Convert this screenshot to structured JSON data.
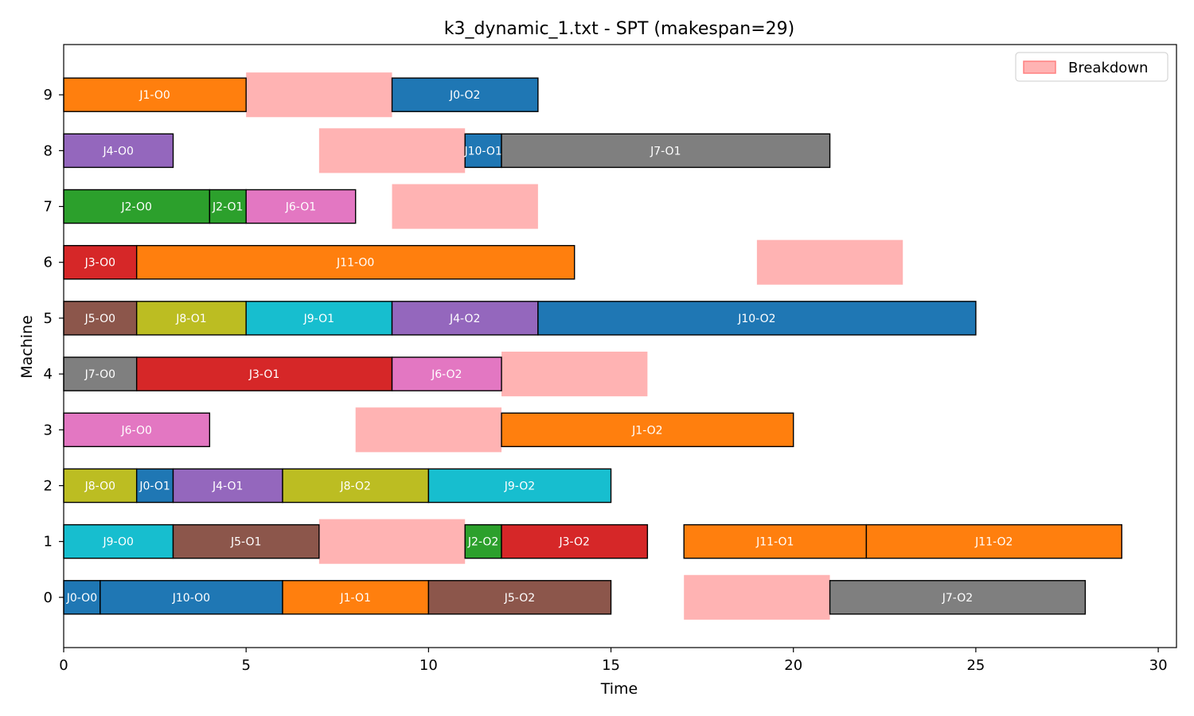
{
  "chart_data": {
    "type": "gantt",
    "title": "k3_dynamic_1.txt - SPT (makespan=29)",
    "xlabel": "Time",
    "ylabel": "Machine",
    "xlim": [
      0,
      30.5
    ],
    "ylim": [
      -0.9,
      9.9
    ],
    "xticks": [
      "0",
      "5",
      "10",
      "15",
      "20",
      "25",
      "30"
    ],
    "yticks": [
      "0",
      "1",
      "2",
      "3",
      "4",
      "5",
      "6",
      "7",
      "8",
      "9"
    ],
    "grid": false,
    "legend": {
      "position": "top-right",
      "entries": [
        {
          "label": "Breakdown",
          "color": "#ffb3b3"
        }
      ]
    },
    "job_colors": {
      "J0": "#1f77b4",
      "J1": "#ff7f0e",
      "J2": "#2ca02c",
      "J3": "#d62728",
      "J4": "#9467bd",
      "J5": "#8c564b",
      "J6": "#e377c2",
      "J7": "#7f7f7f",
      "J8": "#bcbd22",
      "J9": "#17becf",
      "J10": "#1f77b4",
      "J11": "#ff7f0e"
    },
    "breakdown_color": "#ffb3b3",
    "operations": [
      {
        "machine": 9,
        "start": 0,
        "end": 5,
        "job": "J1",
        "label": "J1-O0"
      },
      {
        "machine": 9,
        "start": 9,
        "end": 13,
        "job": "J0",
        "label": "J0-O2"
      },
      {
        "machine": 8,
        "start": 0,
        "end": 3,
        "job": "J4",
        "label": "J4-O0"
      },
      {
        "machine": 8,
        "start": 11,
        "end": 12,
        "job": "J10",
        "label": "J10-O1"
      },
      {
        "machine": 8,
        "start": 12,
        "end": 21,
        "job": "J7",
        "label": "J7-O1"
      },
      {
        "machine": 7,
        "start": 0,
        "end": 4,
        "job": "J2",
        "label": "J2-O0"
      },
      {
        "machine": 7,
        "start": 4,
        "end": 5,
        "job": "J2",
        "label": "J2-O1"
      },
      {
        "machine": 7,
        "start": 5,
        "end": 8,
        "job": "J6",
        "label": "J6-O1"
      },
      {
        "machine": 6,
        "start": 0,
        "end": 2,
        "job": "J3",
        "label": "J3-O0"
      },
      {
        "machine": 6,
        "start": 2,
        "end": 14,
        "job": "J11",
        "label": "J11-O0"
      },
      {
        "machine": 5,
        "start": 0,
        "end": 2,
        "job": "J5",
        "label": "J5-O0"
      },
      {
        "machine": 5,
        "start": 2,
        "end": 5,
        "job": "J8",
        "label": "J8-O1"
      },
      {
        "machine": 5,
        "start": 5,
        "end": 9,
        "job": "J9",
        "label": "J9-O1"
      },
      {
        "machine": 5,
        "start": 9,
        "end": 13,
        "job": "J4",
        "label": "J4-O2"
      },
      {
        "machine": 5,
        "start": 13,
        "end": 25,
        "job": "J10",
        "label": "J10-O2"
      },
      {
        "machine": 4,
        "start": 0,
        "end": 2,
        "job": "J7",
        "label": "J7-O0"
      },
      {
        "machine": 4,
        "start": 2,
        "end": 9,
        "job": "J3",
        "label": "J3-O1"
      },
      {
        "machine": 4,
        "start": 9,
        "end": 12,
        "job": "J6",
        "label": "J6-O2"
      },
      {
        "machine": 3,
        "start": 0,
        "end": 4,
        "job": "J6",
        "label": "J6-O0"
      },
      {
        "machine": 3,
        "start": 12,
        "end": 20,
        "job": "J1",
        "label": "J1-O2"
      },
      {
        "machine": 2,
        "start": 0,
        "end": 2,
        "job": "J8",
        "label": "J8-O0"
      },
      {
        "machine": 2,
        "start": 2,
        "end": 3,
        "job": "J0",
        "label": "J0-O1"
      },
      {
        "machine": 2,
        "start": 3,
        "end": 6,
        "job": "J4",
        "label": "J4-O1"
      },
      {
        "machine": 2,
        "start": 6,
        "end": 10,
        "job": "J8",
        "label": "J8-O2"
      },
      {
        "machine": 2,
        "start": 10,
        "end": 15,
        "job": "J9",
        "label": "J9-O2"
      },
      {
        "machine": 1,
        "start": 0,
        "end": 3,
        "job": "J9",
        "label": "J9-O0"
      },
      {
        "machine": 1,
        "start": 3,
        "end": 7,
        "job": "J5",
        "label": "J5-O1"
      },
      {
        "machine": 1,
        "start": 11,
        "end": 12,
        "job": "J2",
        "label": "J2-O2"
      },
      {
        "machine": 1,
        "start": 12,
        "end": 16,
        "job": "J3",
        "label": "J3-O2"
      },
      {
        "machine": 1,
        "start": 17,
        "end": 22,
        "job": "J11",
        "label": "J11-O1"
      },
      {
        "machine": 1,
        "start": 22,
        "end": 29,
        "job": "J11",
        "label": "J11-O2"
      },
      {
        "machine": 0,
        "start": 0,
        "end": 1,
        "job": "J0",
        "label": "J0-O0"
      },
      {
        "machine": 0,
        "start": 1,
        "end": 6,
        "job": "J10",
        "label": "J10-O0"
      },
      {
        "machine": 0,
        "start": 6,
        "end": 10,
        "job": "J1",
        "label": "J1-O1"
      },
      {
        "machine": 0,
        "start": 10,
        "end": 15,
        "job": "J5",
        "label": "J5-O2"
      },
      {
        "machine": 0,
        "start": 21,
        "end": 28,
        "job": "J7",
        "label": "J7-O2"
      }
    ],
    "breakdowns": [
      {
        "machine": 9,
        "start": 5,
        "end": 9
      },
      {
        "machine": 8,
        "start": 7,
        "end": 11
      },
      {
        "machine": 7,
        "start": 9,
        "end": 13
      },
      {
        "machine": 6,
        "start": 19,
        "end": 23
      },
      {
        "machine": 4,
        "start": 12,
        "end": 16
      },
      {
        "machine": 3,
        "start": 8,
        "end": 12
      },
      {
        "machine": 1,
        "start": 7,
        "end": 11
      },
      {
        "machine": 0,
        "start": 17,
        "end": 21
      }
    ]
  }
}
